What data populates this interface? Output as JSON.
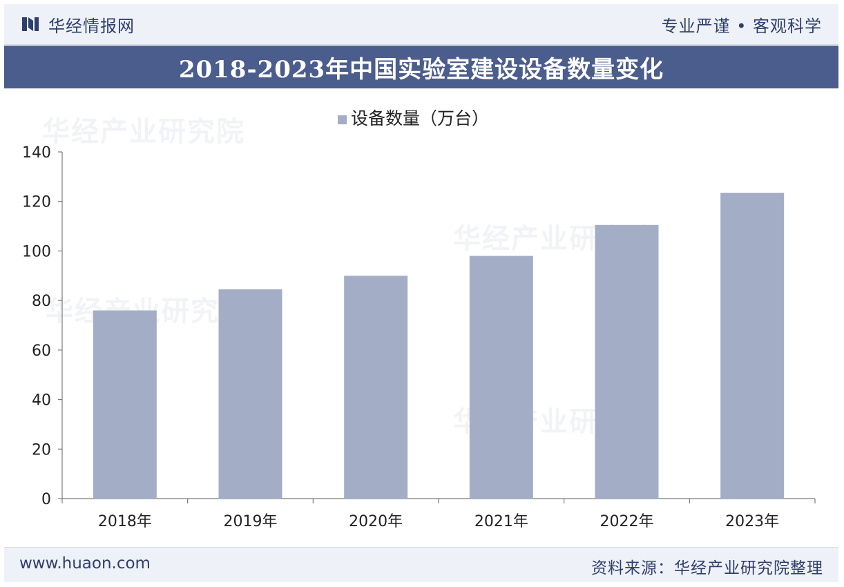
{
  "header": {
    "brand_name": "华经情报网",
    "slogan": "专业严谨 • 客观科学",
    "logo_icon": "brand-logo-icon"
  },
  "title": "2018-2023年中国实验室建设设备数量变化",
  "footer": {
    "url": "www.huaon.com",
    "source": "资料来源：华经产业研究院整理"
  },
  "watermarks": [
    "华经产业研究院",
    "华经产业研究院",
    "华经产业研究院",
    "华经产业研究院"
  ],
  "colors": {
    "bar": "#a3aec6",
    "title_band": "#4b5d8c",
    "text_dark": "#2f3f6b",
    "axis": "#7a7a7a"
  },
  "chart_data": {
    "type": "bar",
    "title": "2018-2023年中国实验室建设设备数量变化",
    "categories": [
      "2018年",
      "2019年",
      "2020年",
      "2021年",
      "2022年",
      "2023年"
    ],
    "series": [
      {
        "name": "设备数量（万台）",
        "values": [
          76,
          84.5,
          90,
          98,
          110.5,
          123.5
        ]
      }
    ],
    "ylim": [
      0,
      140
    ],
    "yticks": [
      0,
      20,
      40,
      60,
      80,
      100,
      120,
      140
    ],
    "xlabel": "",
    "ylabel": "",
    "legend_position": "top-center",
    "grid": false
  }
}
